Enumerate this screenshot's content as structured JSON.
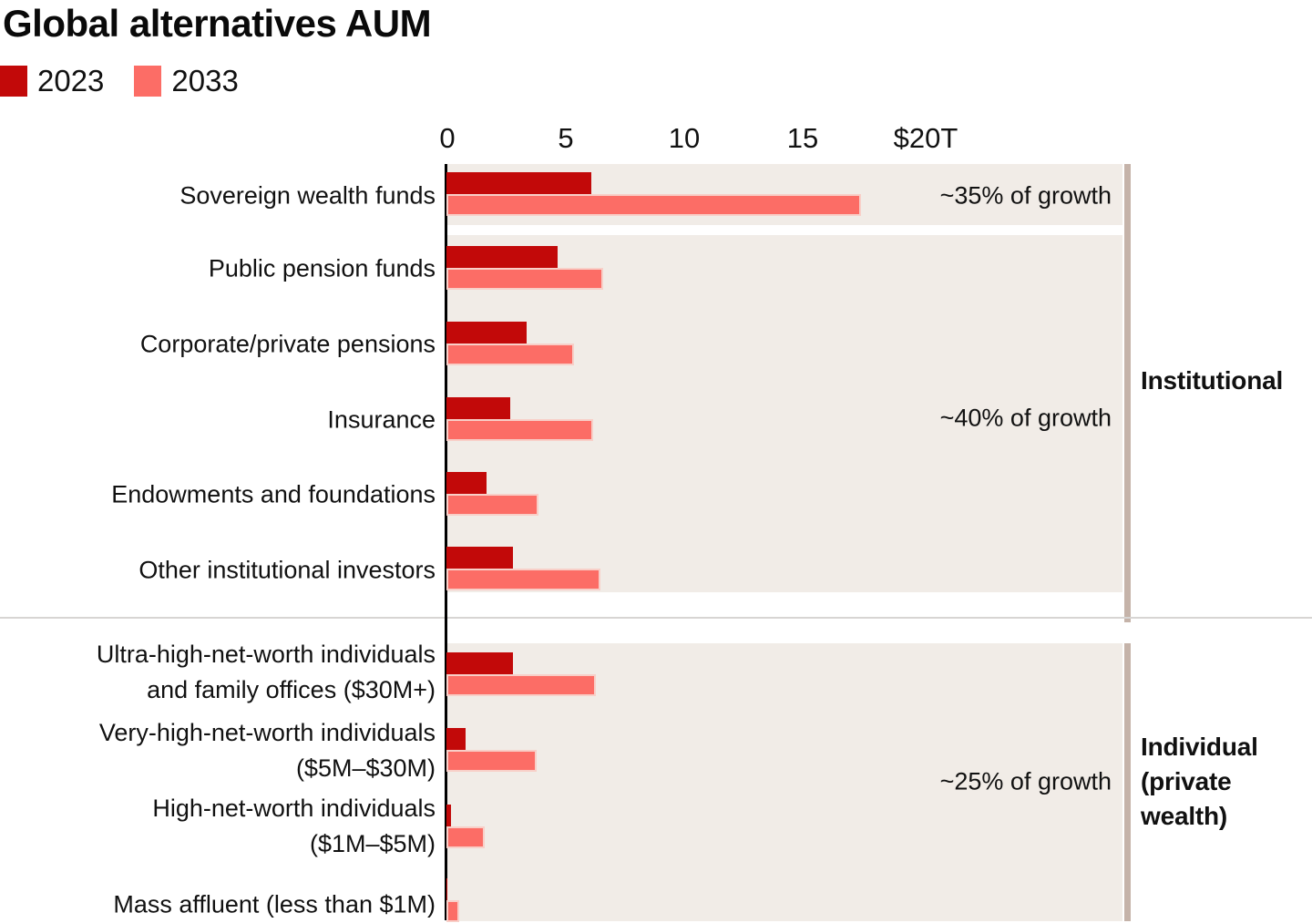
{
  "title": "Global alternatives AUM",
  "legend": [
    {
      "label": "2023",
      "color": "#c20909"
    },
    {
      "label": "2033",
      "color": "#fc6d66"
    }
  ],
  "colors": {
    "bar_2023": "#c20909",
    "bar_2033": "#fc6d66",
    "bar_2033_edge": "#f8cfc8",
    "track_background": "#f1ece7",
    "section_edge_bar": "#c5b3a9",
    "axis_line": "#000000",
    "divider_line": "#d7d5d3",
    "text": "#111111"
  },
  "chart_data": {
    "type": "bar",
    "orientation": "horizontal",
    "title": "Global alternatives AUM",
    "unit": "USD trillions",
    "xlim": [
      0,
      20
    ],
    "x_ticks": [
      {
        "value": 0,
        "label": "0"
      },
      {
        "value": 5,
        "label": "5"
      },
      {
        "value": 10,
        "label": "10"
      },
      {
        "value": 15,
        "label": "15"
      },
      {
        "value": 20,
        "label": "$20T"
      }
    ],
    "grid": false,
    "legend_position": "top-left",
    "series_names": [
      "2023",
      "2033"
    ],
    "rows": [
      {
        "id": "sovereign-wealth-funds",
        "label_lines": [
          "Sovereign wealth funds"
        ],
        "v2023": 6.1,
        "v2033": 17.5
      },
      {
        "id": "public-pension-funds",
        "label_lines": [
          "Public pension funds"
        ],
        "v2023": 4.7,
        "v2033": 6.6
      },
      {
        "id": "corporate-private-pensions",
        "label_lines": [
          "Corporate/private pensions"
        ],
        "v2023": 3.4,
        "v2033": 5.4
      },
      {
        "id": "insurance",
        "label_lines": [
          "Insurance"
        ],
        "v2023": 2.7,
        "v2033": 6.2
      },
      {
        "id": "endowments-and-foundations",
        "label_lines": [
          "Endowments and foundations"
        ],
        "v2023": 1.7,
        "v2033": 3.9
      },
      {
        "id": "other-institutional-investors",
        "label_lines": [
          "Other institutional investors"
        ],
        "v2023": 2.8,
        "v2033": 6.5
      },
      {
        "id": "ultra-high-net-worth",
        "label_lines": [
          "Ultra-high-net-worth individuals",
          "and family offices ($30M+)"
        ],
        "v2023": 2.8,
        "v2033": 6.3
      },
      {
        "id": "very-high-net-worth",
        "label_lines": [
          "Very-high-net-worth individuals",
          "($5M–$30M)"
        ],
        "v2023": 0.8,
        "v2033": 3.8
      },
      {
        "id": "high-net-worth",
        "label_lines": [
          "High-net-worth individuals",
          "($1M–$5M)"
        ],
        "v2023": 0.2,
        "v2033": 1.6
      },
      {
        "id": "mass-affluent",
        "label_lines": [
          "Mass affluent (less than $1M)"
        ],
        "v2023": 0.05,
        "v2033": 0.55
      }
    ],
    "annotations": [
      {
        "id": "growth-sovereign-wealth",
        "text": "~35% of growth"
      },
      {
        "id": "growth-institutional",
        "text": "~40% of growth"
      },
      {
        "id": "growth-individual",
        "text": "~25% of growth"
      }
    ],
    "groups": [
      {
        "id": "institutional",
        "label": "Institutional",
        "rows": [
          0,
          1,
          2,
          3,
          4,
          5
        ]
      },
      {
        "id": "individual",
        "label": "Individual (private wealth)",
        "rows": [
          6,
          7,
          8,
          9
        ]
      }
    ]
  }
}
